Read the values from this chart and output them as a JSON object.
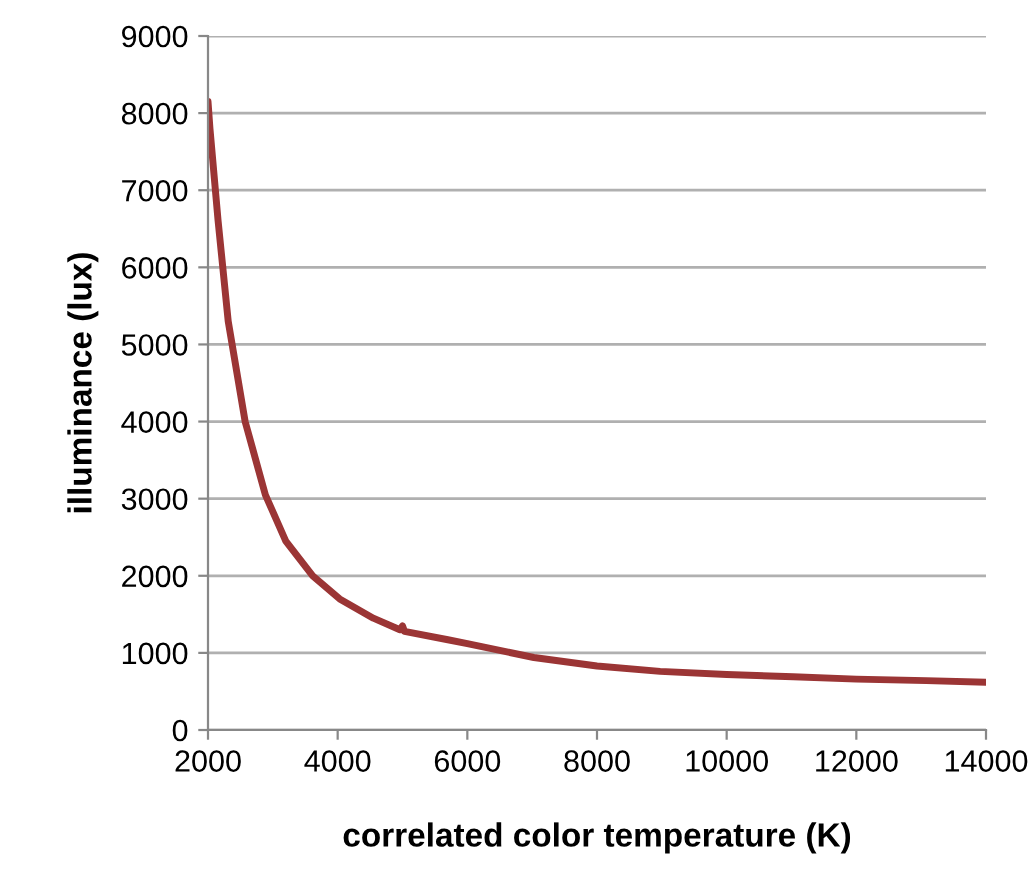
{
  "chart_data": {
    "type": "line",
    "xlabel": "correlated color temperature (K)",
    "ylabel": "illuminance (lux)",
    "x": [
      2000,
      2030,
      2156,
      2312,
      2573,
      2885,
      3200,
      3615,
      4031,
      4550,
      4960,
      5000,
      5030,
      5700,
      6000,
      7026,
      8000,
      8974,
      10000,
      11026,
      12000,
      13077,
      14000
    ],
    "values": [
      8150,
      7800,
      6600,
      5300,
      4000,
      3050,
      2450,
      2000,
      1700,
      1450,
      1300,
      1350,
      1280,
      1170,
      1120,
      940,
      830,
      760,
      720,
      690,
      660,
      640,
      620
    ],
    "color": "#9b3535",
    "xlim": [
      2000,
      14000
    ],
    "xticks": [
      2000,
      4000,
      6000,
      8000,
      10000,
      12000,
      14000
    ],
    "ylim": [
      0,
      9000
    ],
    "yticks": [
      0,
      1000,
      2000,
      3000,
      4000,
      5000,
      6000,
      7000,
      8000,
      9000
    ],
    "grid": "y",
    "marker": "none",
    "line_style": "solid"
  }
}
